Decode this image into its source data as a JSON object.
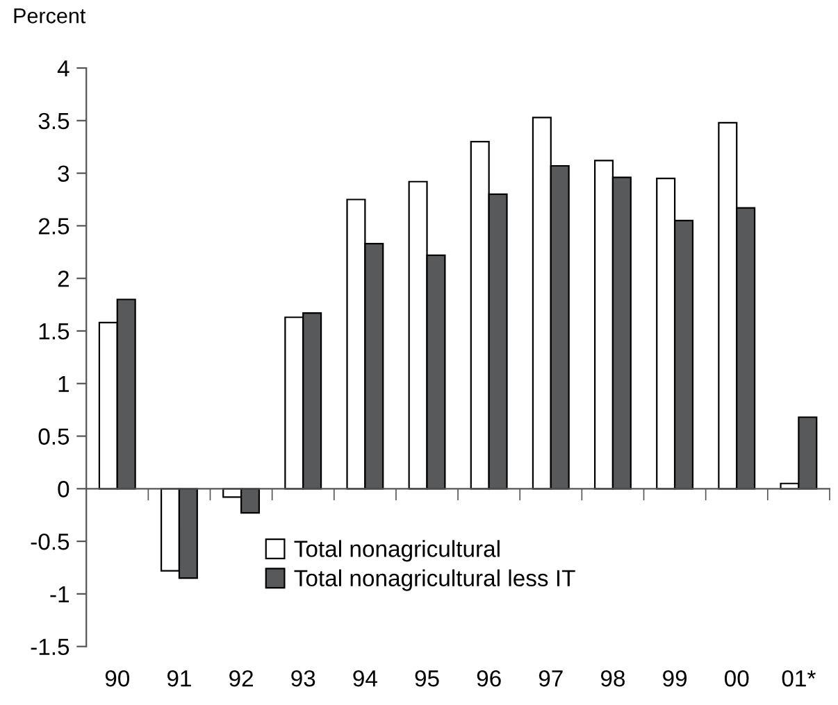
{
  "chart_data": {
    "type": "bar",
    "ylabel": "Percent",
    "categories": [
      "90",
      "91",
      "92",
      "93",
      "94",
      "95",
      "96",
      "97",
      "98",
      "99",
      "00",
      "01*"
    ],
    "series": [
      {
        "name": "Total nonagricultural",
        "color": "#ffffff",
        "values": [
          1.58,
          -0.78,
          -0.08,
          1.63,
          2.75,
          2.92,
          3.3,
          3.53,
          3.12,
          2.95,
          3.48,
          0.05
        ]
      },
      {
        "name": "Total nonagricultural less IT",
        "color": "#58595b",
        "values": [
          1.8,
          -0.85,
          -0.23,
          1.67,
          2.33,
          2.22,
          2.8,
          3.07,
          2.96,
          2.55,
          2.67,
          0.68
        ]
      }
    ],
    "ylim": [
      -1.5,
      4
    ],
    "yticks": [
      -1.5,
      -1,
      -0.5,
      0,
      0.5,
      1,
      1.5,
      2,
      2.5,
      3,
      3.5,
      4
    ],
    "legend": "bottom"
  }
}
